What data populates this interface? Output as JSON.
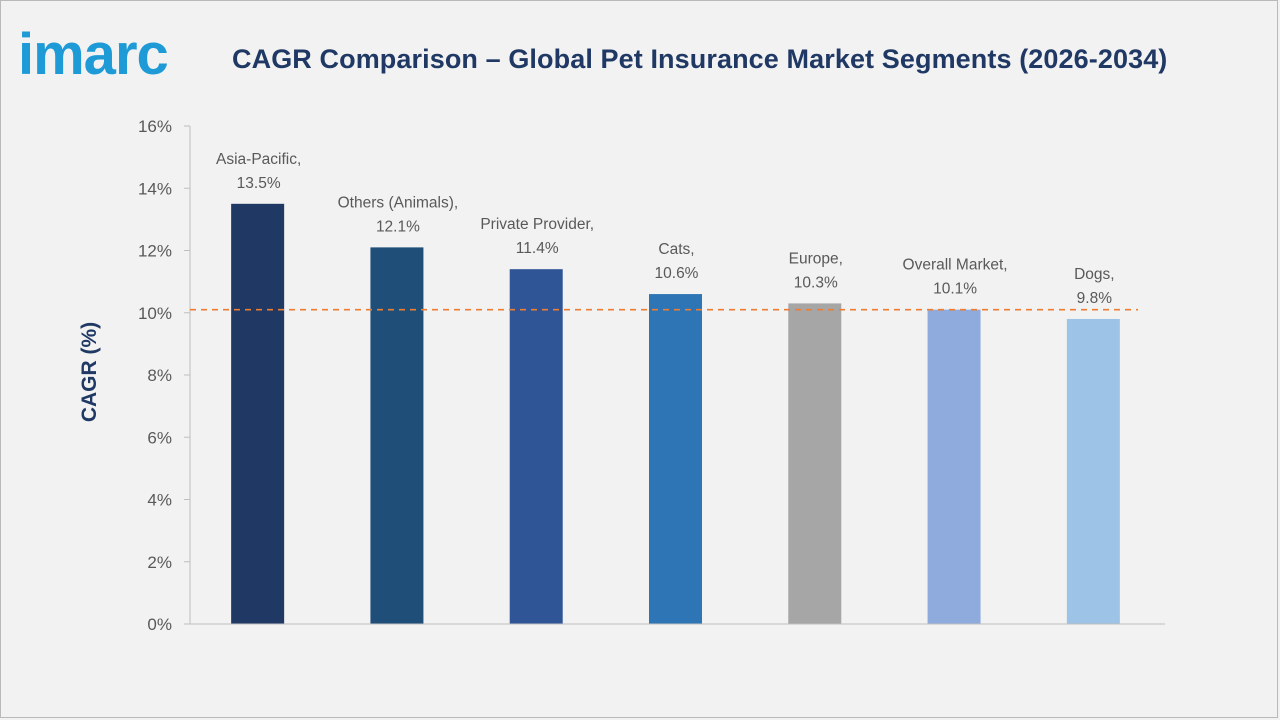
{
  "brand": {
    "logo_text": "imarc",
    "logo_color": "#1e9bd7"
  },
  "title": "CAGR Comparison – Global Pet Insurance Market Segments (2026-2034)",
  "chart_data": {
    "type": "bar",
    "title": "CAGR Comparison – Global Pet Insurance Market Segments (2026-2034)",
    "xlabel": "",
    "ylabel": "CAGR (%)",
    "ylim": [
      0,
      16
    ],
    "y_ticks": [
      0,
      2,
      4,
      6,
      8,
      10,
      12,
      14,
      16
    ],
    "y_tick_labels": [
      "0%",
      "2%",
      "4%",
      "6%",
      "8%",
      "10%",
      "12%",
      "14%",
      "16%"
    ],
    "categories": [
      "Asia-Pacific",
      "Others (Animals)",
      "Private Provider",
      "Cats",
      "Europe",
      "Overall Market",
      "Dogs"
    ],
    "values": [
      13.5,
      12.1,
      11.4,
      10.6,
      10.3,
      10.1,
      9.8
    ],
    "data_labels": [
      [
        "Asia-Pacific,",
        "13.5%"
      ],
      [
        "Others (Animals),",
        "12.1%"
      ],
      [
        "Private Provider,",
        "11.4%"
      ],
      [
        "Cats,",
        "10.6%"
      ],
      [
        "Europe,",
        "10.3%"
      ],
      [
        "Overall Market,",
        "10.1%"
      ],
      [
        "Dogs,",
        "9.8%"
      ]
    ],
    "colors": [
      "#1f3864",
      "#1f4e79",
      "#2f5597",
      "#2e75b6",
      "#a6a6a6",
      "#8faadc",
      "#9dc3e6"
    ],
    "reference_line": {
      "value": 10.1,
      "style": "dashed",
      "color": "#ed7d31"
    },
    "grid": false,
    "legend": "none"
  }
}
